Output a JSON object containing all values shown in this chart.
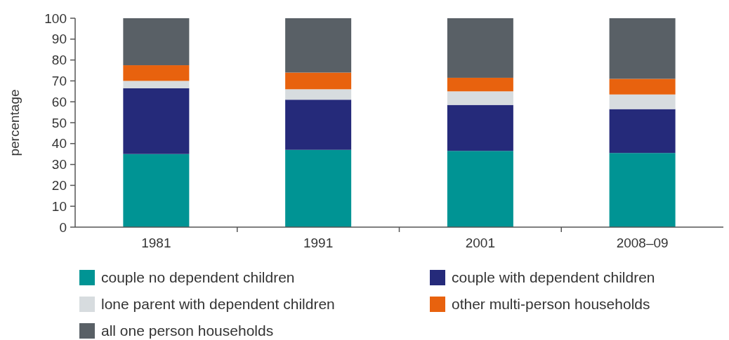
{
  "chart_data": {
    "type": "bar",
    "stacked": true,
    "ylabel": "percentage",
    "categories": [
      "1981",
      "1991",
      "2001",
      "2008–09"
    ],
    "ylim": [
      0,
      100
    ],
    "yticks": [
      0,
      10,
      20,
      30,
      40,
      50,
      60,
      70,
      80,
      90,
      100
    ],
    "grid": false,
    "legend": "bottom",
    "series": [
      {
        "name": "couple no dependent children",
        "color": "#009494",
        "values": [
          35,
          37,
          36.5,
          35.5
        ]
      },
      {
        "name": "couple with dependent children",
        "color": "#252a7a",
        "values": [
          31.5,
          24,
          22,
          21
        ]
      },
      {
        "name": "lone parent with dependent children",
        "color": "#d7dcdf",
        "values": [
          3.5,
          5,
          6.5,
          7
        ]
      },
      {
        "name": "other multi-person households",
        "color": "#e8620e",
        "values": [
          7.5,
          8,
          6.5,
          7.5
        ]
      },
      {
        "name": "all one person households",
        "color": "#596066",
        "values": [
          22.5,
          26,
          28.5,
          29
        ]
      }
    ]
  }
}
